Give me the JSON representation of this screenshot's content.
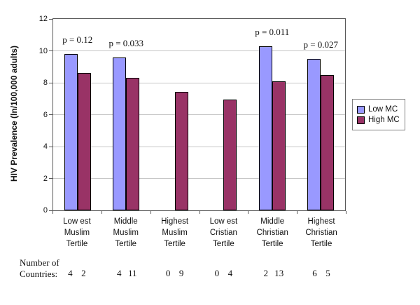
{
  "chart_data": {
    "type": "bar",
    "title": "",
    "xlabel": "",
    "ylabel": "HIV Prevalence (ln/100,000 adults)",
    "ylim": [
      0,
      12
    ],
    "ytick_step": 2,
    "grid": true,
    "legend_position": "right",
    "categories": [
      [
        "Low est",
        "Muslim",
        "Tertile"
      ],
      [
        "Middle",
        "Muslim",
        "Tertile"
      ],
      [
        "Highest",
        "Muslim",
        "Tertile"
      ],
      [
        "Low est",
        "Cristian",
        "Tertile"
      ],
      [
        "Middle",
        "Christian",
        "Tertile"
      ],
      [
        "Highest",
        "Christian",
        "Tertile"
      ]
    ],
    "series": [
      {
        "name": "Low MC",
        "color": "#9999FF",
        "values": [
          9.8,
          9.6,
          null,
          null,
          10.3,
          9.5
        ]
      },
      {
        "name": "High MC",
        "color": "#993366",
        "values": [
          8.6,
          8.3,
          7.45,
          6.95,
          8.1,
          8.5
        ]
      }
    ],
    "p_values": [
      "p = 0.12",
      "p = 0.033",
      null,
      null,
      "p = 0.011",
      "p = 0.027"
    ],
    "counts": {
      "label": [
        "Number of",
        "Countries:"
      ],
      "pairs": [
        [
          4,
          2
        ],
        [
          4,
          11
        ],
        [
          0,
          9
        ],
        [
          0,
          4
        ],
        [
          2,
          13
        ],
        [
          6,
          5
        ]
      ]
    }
  },
  "colors": {
    "low_mc": "#9999FF",
    "high_mc": "#993366",
    "gridline": "#c6c6c6",
    "frame": "#595959"
  }
}
